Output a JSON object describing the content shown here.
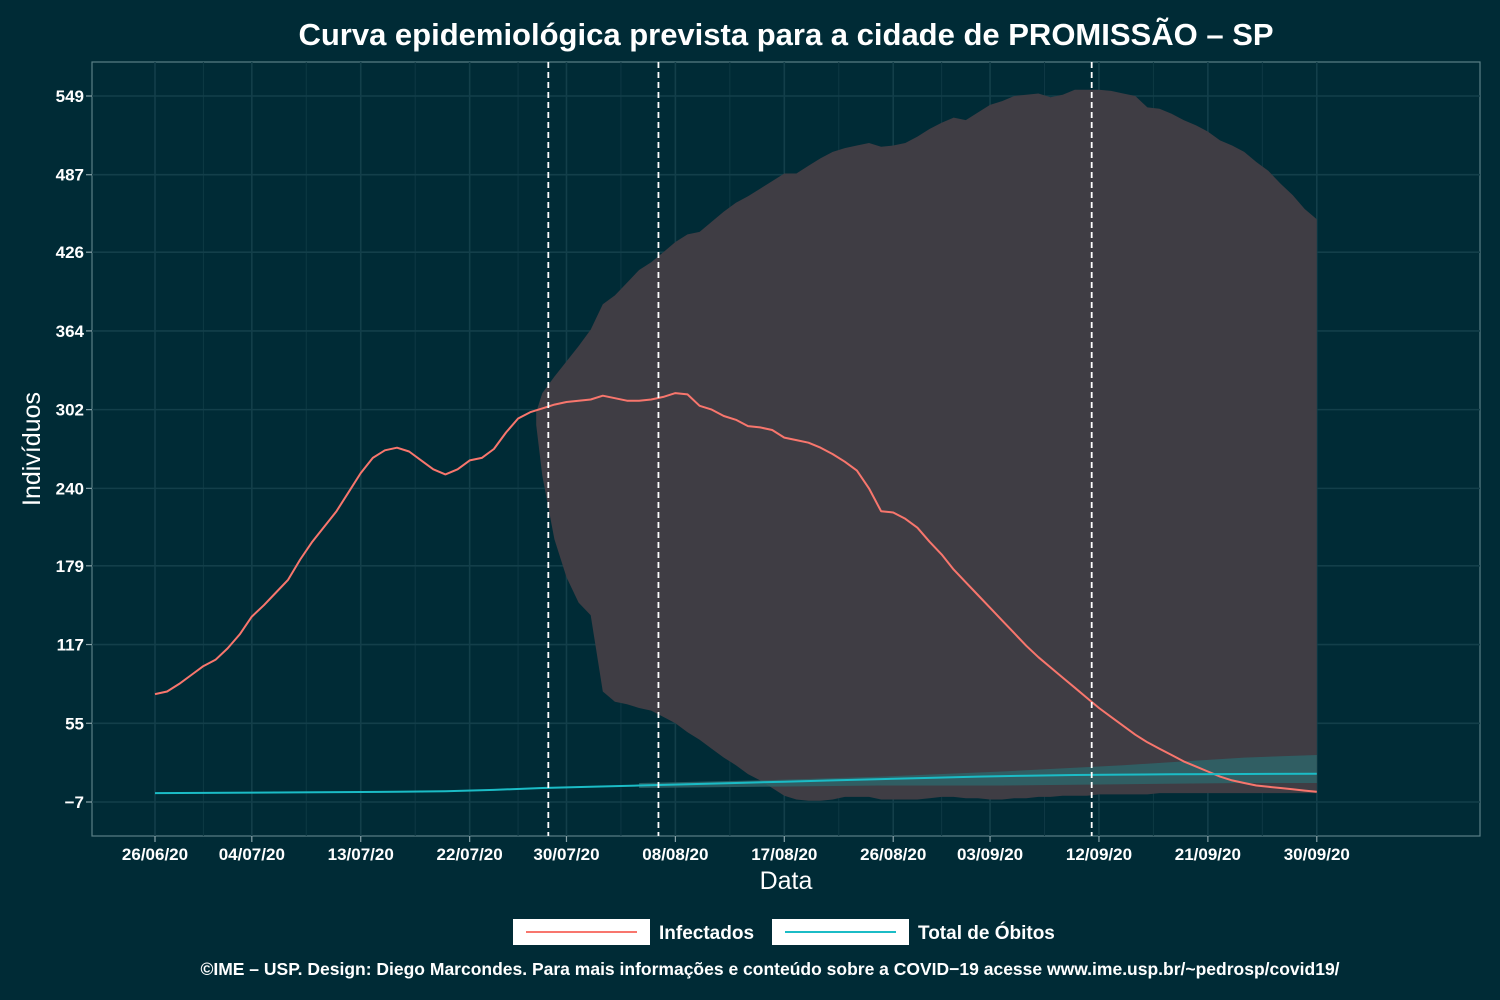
{
  "chart_data": {
    "type": "line",
    "title": "Curva epidemiológica prevista para a cidade de PROMISSÃO – SP",
    "xlabel": "Data",
    "ylabel": "Indivíduos",
    "x_tick_labels": [
      "26/06/20",
      "04/07/20",
      "13/07/20",
      "22/07/20",
      "30/07/20",
      "08/08/20",
      "17/08/20",
      "26/08/20",
      "03/09/20",
      "12/09/20",
      "21/09/20",
      "30/09/20"
    ],
    "x_tick_days": [
      0,
      8,
      17,
      26,
      34,
      43,
      52,
      61,
      69,
      78,
      87,
      96
    ],
    "y_tick_labels": [
      "−7",
      "55",
      "117",
      "179",
      "240",
      "302",
      "364",
      "426",
      "487",
      "549"
    ],
    "y_ticks": [
      -7,
      55,
      117,
      179,
      240,
      302,
      364,
      426,
      487,
      549
    ],
    "ylim": [
      -7,
      549
    ],
    "grid": true,
    "legend_position": "bottom",
    "vlines_dates": [
      "28/07/20",
      "06/08/20",
      "10/09/20"
    ],
    "vlines_days": [
      32.5,
      41.6,
      77.4
    ],
    "series": [
      {
        "name": "Infectados",
        "color": "#F8766D",
        "x_days": [
          0,
          1,
          2,
          3,
          4,
          5,
          6,
          7,
          8,
          9,
          10,
          11,
          12,
          13,
          14,
          15,
          16,
          17,
          18,
          19,
          20,
          21,
          22,
          23,
          24,
          25,
          26,
          27,
          28,
          29,
          30,
          31,
          32,
          33,
          34,
          35,
          36,
          37,
          38,
          39,
          40,
          41,
          42,
          43,
          44,
          45,
          46,
          47,
          48,
          49,
          50,
          51,
          52,
          53,
          54,
          55,
          56,
          57,
          58,
          59,
          60,
          61,
          62,
          63,
          64,
          65,
          66,
          67,
          68,
          69,
          70,
          71,
          72,
          73,
          74,
          75,
          76,
          77,
          78,
          79,
          80,
          81,
          82,
          83,
          84,
          85,
          86,
          87,
          88,
          89,
          90,
          91,
          92,
          93,
          94,
          95,
          96
        ],
        "values": [
          78,
          80,
          86,
          93,
          100,
          105,
          114,
          125,
          139,
          148,
          158,
          168,
          184,
          198,
          210,
          222,
          237,
          252,
          264,
          270,
          272,
          269,
          262,
          255,
          251,
          255,
          262,
          264,
          271,
          284,
          295,
          300,
          303,
          306,
          308,
          309,
          310,
          313,
          311,
          309,
          309,
          310,
          312,
          315,
          314,
          305,
          302,
          297,
          294,
          289,
          288,
          286,
          280,
          278,
          276,
          272,
          267,
          261,
          254,
          240,
          222,
          221,
          216,
          209,
          198,
          188,
          176,
          166,
          156,
          146,
          136,
          126,
          116,
          107,
          99,
          91,
          83,
          75,
          67,
          60,
          53,
          46,
          40,
          35,
          30,
          25,
          21,
          17,
          13,
          10,
          8,
          6,
          5,
          4,
          3,
          2,
          1
        ]
      },
      {
        "name": "Total de Óbitos",
        "color": "#1BBCC6",
        "x_days": [
          0,
          10,
          20,
          24,
          28,
          32,
          36,
          40,
          44,
          48,
          52,
          56,
          60,
          64,
          68,
          72,
          76,
          80,
          84,
          88,
          92,
          96
        ],
        "values": [
          0,
          0.5,
          1,
          1.5,
          2.5,
          4,
          5,
          6,
          7,
          8,
          9,
          10,
          11,
          12,
          13,
          13.7,
          14.3,
          14.6,
          14.8,
          15,
          15.1,
          15.2
        ]
      }
    ],
    "bands": [
      {
        "fill": "#3F3D44",
        "x_days": [
          31.5,
          32,
          33,
          34,
          35,
          36,
          37,
          38,
          39,
          40,
          41,
          42,
          43,
          44,
          45,
          46,
          47,
          48,
          49,
          50,
          51,
          52,
          53,
          54,
          55,
          56,
          57,
          58,
          59,
          60,
          61,
          62,
          63,
          64,
          65,
          66,
          67,
          68,
          69,
          70,
          71,
          72,
          73,
          74,
          75,
          76,
          77,
          78,
          79,
          80,
          81,
          82,
          83,
          84,
          85,
          86,
          87,
          88,
          89,
          90,
          91,
          92,
          93,
          94,
          95,
          96
        ],
        "lower": [
          290,
          250,
          200,
          170,
          150,
          140,
          80,
          72,
          70,
          67,
          65,
          60,
          55,
          48,
          42,
          35,
          28,
          22,
          15,
          10,
          4,
          -2,
          -5,
          -6,
          -6,
          -5,
          -3,
          -3,
          -3,
          -5,
          -5,
          -5,
          -5,
          -4,
          -3,
          -3,
          -4,
          -4,
          -5,
          -5,
          -4,
          -4,
          -3,
          -3,
          -2,
          -2,
          -2,
          -1,
          -1,
          -1,
          -1,
          -1,
          0,
          0,
          0,
          0,
          0,
          0,
          0,
          0,
          0,
          0,
          0,
          0,
          0,
          0
        ],
        "upper": [
          300,
          315,
          328,
          340,
          352,
          365,
          385,
          392,
          402,
          412,
          418,
          426,
          434,
          440,
          442,
          450,
          458,
          465,
          470,
          476,
          482,
          488,
          488,
          494,
          500,
          505,
          508,
          510,
          512,
          509,
          510,
          512,
          517,
          523,
          528,
          532,
          530,
          536,
          542,
          545,
          549,
          550,
          551,
          548,
          550,
          554,
          554,
          554,
          553,
          551,
          549,
          540,
          539,
          535,
          530,
          526,
          521,
          514,
          510,
          505,
          497,
          490,
          480,
          471,
          460,
          452
        ],
        "end_day": 96
      },
      {
        "fill": "#2E6468",
        "x_days": [
          40,
          50,
          60,
          70,
          80,
          90,
          96
        ],
        "lower": [
          4,
          5,
          6,
          6,
          7,
          8,
          8
        ],
        "upper": [
          8,
          10,
          13,
          17,
          22,
          28,
          30
        ]
      }
    ]
  },
  "legend": {
    "items": [
      {
        "label": "Infectados",
        "color": "#F8766D"
      },
      {
        "label": "Total de Óbitos",
        "color": "#1BBCC6"
      }
    ]
  },
  "caption": "©IME – USP. Design: Diego Marcondes. Para mais informações e conteúdo sobre a COVID−19 acesse www.ime.usp.br/~pedrosp/covid19/"
}
